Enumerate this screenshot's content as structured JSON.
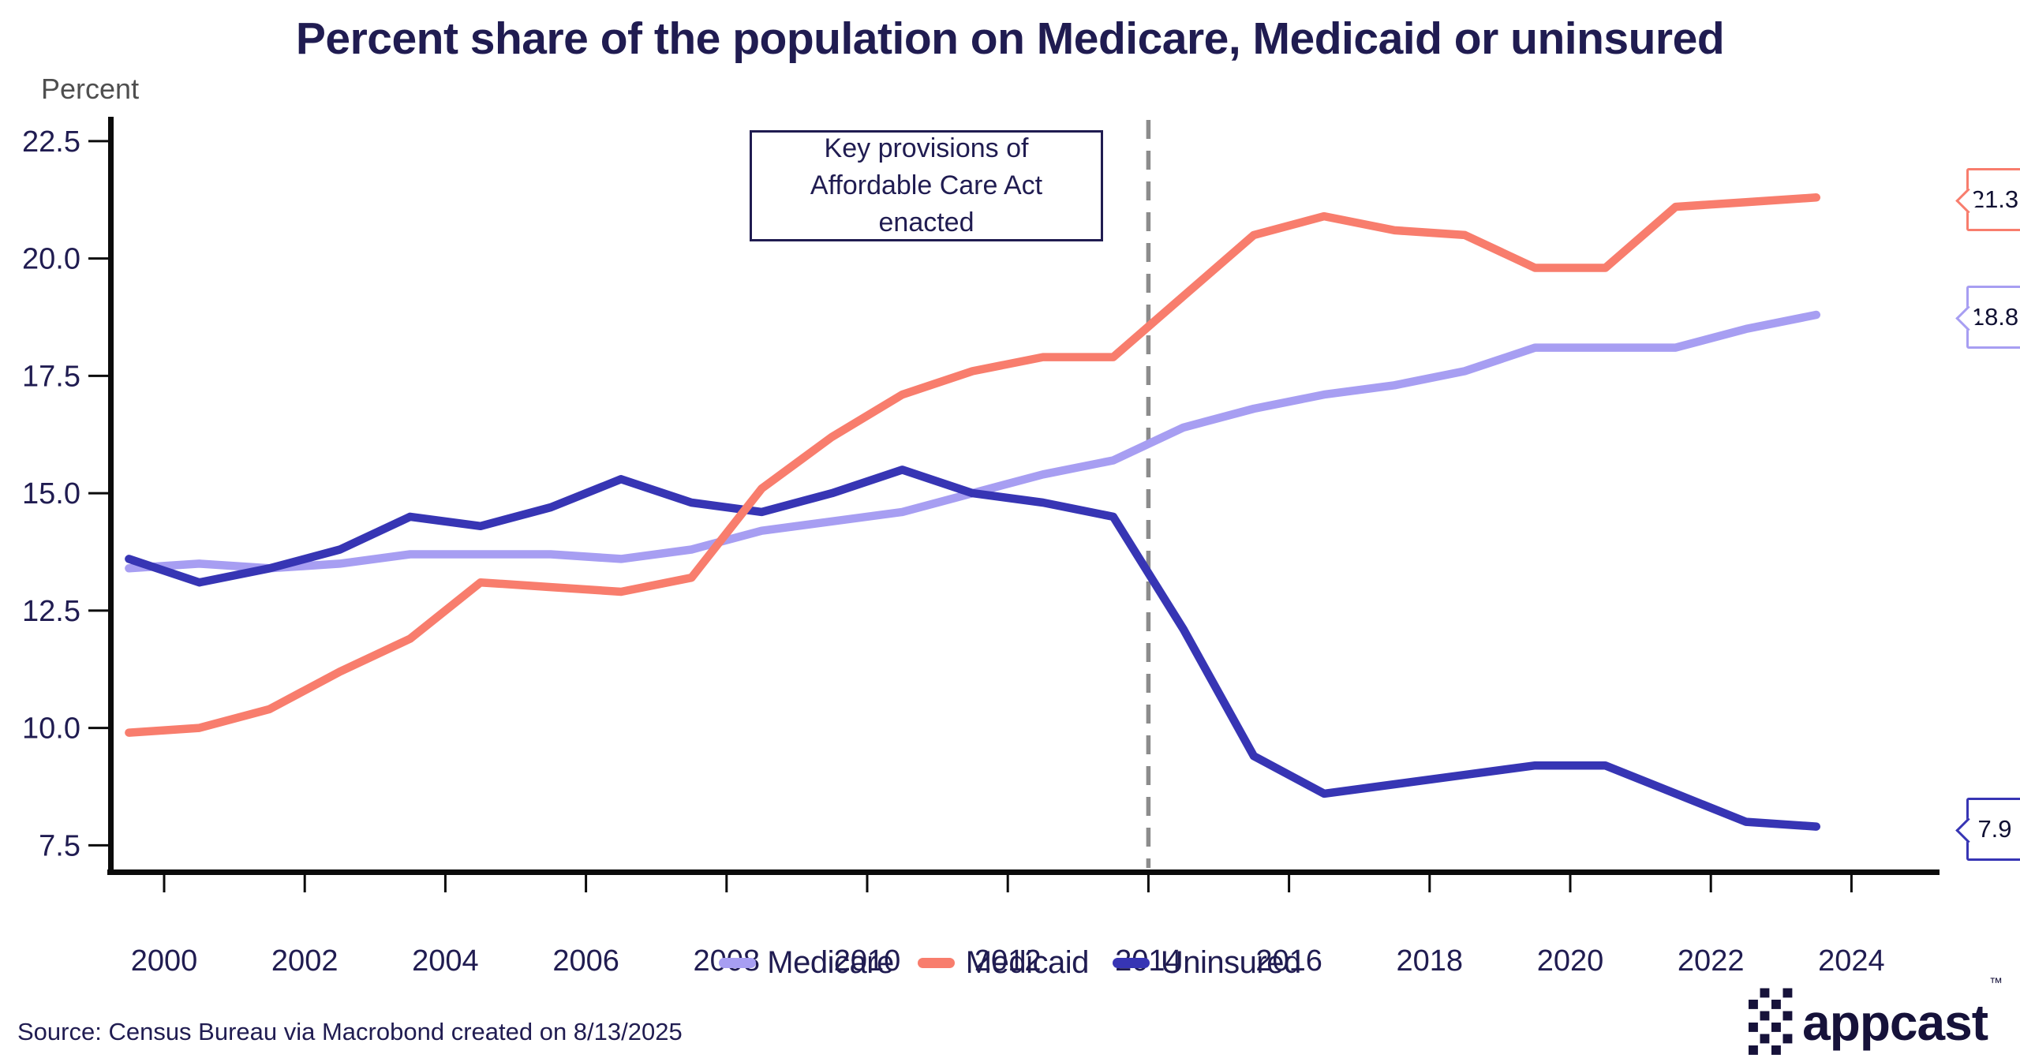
{
  "title": "Percent share of the population on Medicare, Medicaid or uninsured",
  "y_axis_label": "Percent",
  "annotation": "Key provisions of Affordable Care Act enacted",
  "source": "Source: Census Bureau via Macrobond created on 8/13/2025",
  "logo": {
    "text": "appcast",
    "tm": "™"
  },
  "colors": {
    "background": "#ffffff",
    "title_text": "#201c51",
    "tick_text": "#201c51",
    "axis": "#0b0b0b",
    "dashed_line": "#8c8c8c",
    "annotation_border": "#201c51",
    "percent_label": "#4f4f4f",
    "logo": "#16123a",
    "medicare": "#a79ef2",
    "medicaid": "#f87d6d",
    "uninsured": "#3735b4"
  },
  "chart_data": {
    "type": "line",
    "title": "Percent share of the population on Medicare, Medicaid or uninsured",
    "xlabel": "",
    "ylabel": "Percent",
    "grid": false,
    "legend_position": "bottom",
    "ylim": [
      6.9,
      23.0
    ],
    "xlim": [
      1999.2,
      2025.3
    ],
    "yticks": [
      22.5,
      20.0,
      17.5,
      15.0,
      12.5,
      10.0,
      7.5
    ],
    "xticks": [
      2000,
      2002,
      2004,
      2006,
      2008,
      2010,
      2012,
      2014,
      2016,
      2018,
      2020,
      2022,
      2024
    ],
    "annotation_line_x": 2014,
    "years": [
      1999,
      2000,
      2001,
      2002,
      2003,
      2004,
      2005,
      2006,
      2007,
      2008,
      2009,
      2010,
      2011,
      2012,
      2013,
      2014,
      2015,
      2016,
      2017,
      2018,
      2019,
      2020,
      2021,
      2022,
      2023
    ],
    "series": [
      {
        "name": "Medicare",
        "color": "#a79ef2",
        "end_label": "18.8",
        "values": [
          13.4,
          13.5,
          13.4,
          13.5,
          13.7,
          13.7,
          13.7,
          13.6,
          13.8,
          14.2,
          14.4,
          14.6,
          15.0,
          15.4,
          15.7,
          16.4,
          16.8,
          17.1,
          17.3,
          17.6,
          18.1,
          18.1,
          18.1,
          18.5,
          18.8
        ]
      },
      {
        "name": "Medicaid",
        "color": "#f87d6d",
        "end_label": "21.3",
        "values": [
          9.9,
          10.0,
          10.4,
          11.2,
          11.9,
          13.1,
          13.0,
          12.9,
          13.2,
          15.1,
          16.2,
          17.1,
          17.6,
          17.9,
          17.9,
          19.2,
          20.5,
          20.9,
          20.6,
          20.5,
          19.8,
          19.8,
          21.1,
          21.2,
          21.3
        ]
      },
      {
        "name": "Uninsured",
        "color": "#3735b4",
        "end_label": "7.9",
        "values": [
          13.6,
          13.1,
          13.4,
          13.8,
          14.5,
          14.3,
          14.7,
          15.3,
          14.8,
          14.6,
          15.0,
          15.5,
          15.0,
          14.8,
          14.5,
          12.1,
          9.4,
          8.6,
          8.8,
          9.0,
          9.2,
          9.2,
          8.6,
          8.0,
          7.9
        ]
      }
    ]
  }
}
